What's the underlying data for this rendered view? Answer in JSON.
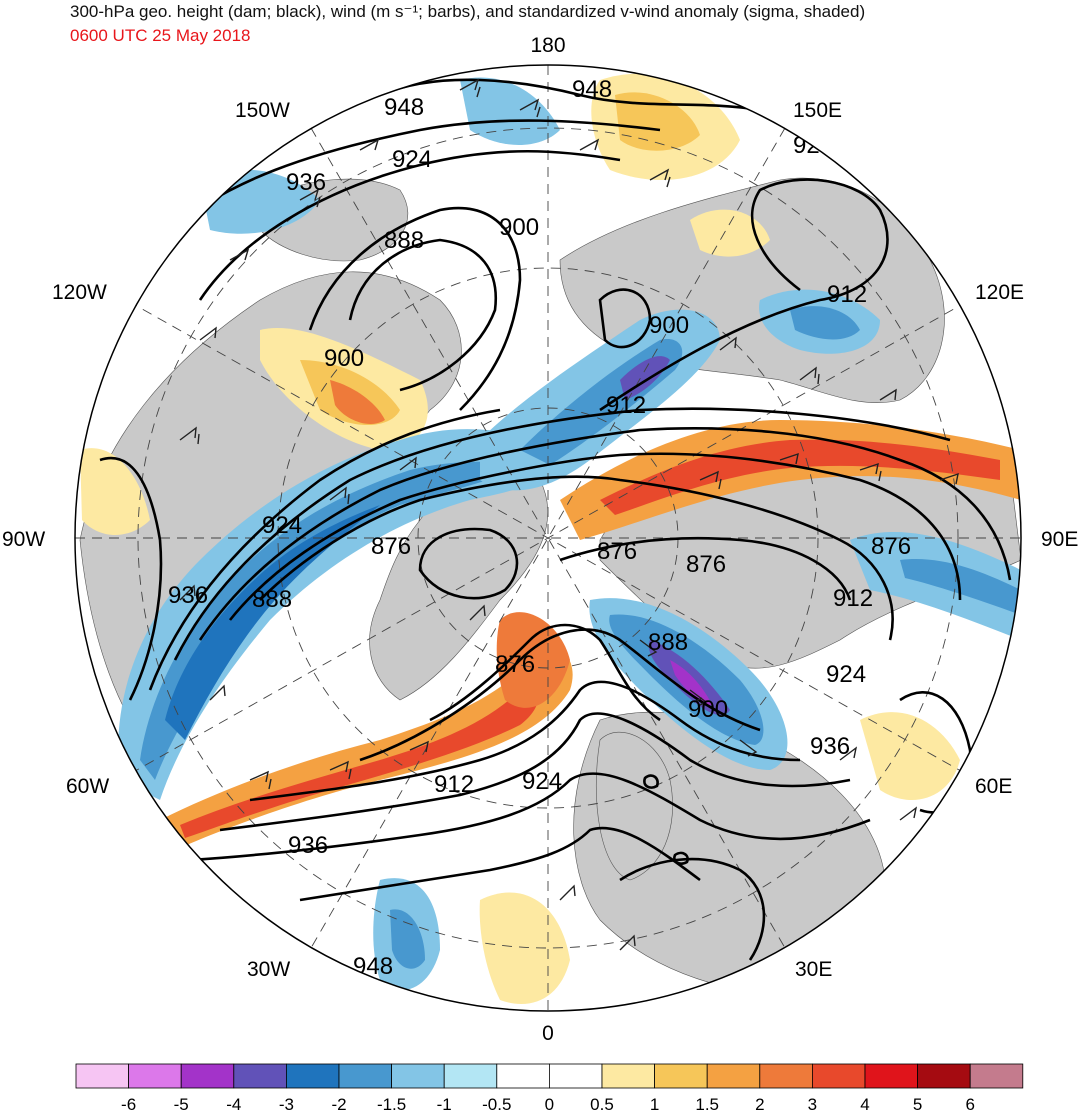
{
  "header": {
    "title": "300-hPa geo. height (dam; black), wind (m s⁻¹; barbs), and standardized v-wind anomaly (sigma, shaded)",
    "valid_time": "0600 UTC 25 May 2018"
  },
  "longitude_labels": {
    "l180": "180",
    "l150e": "150E",
    "l120e": "120E",
    "l90e": "90E",
    "l60e": "60E",
    "l30e": "30E",
    "l0": "0",
    "l30w": "30W",
    "l60w": "60W",
    "l90w": "90W",
    "l120w": "120W",
    "l150w": "150W"
  },
  "contour_labels": {
    "c948a": "948",
    "c948b": "948",
    "c924a": "924",
    "c936a": "936",
    "c888a": "888",
    "c900a": "900",
    "c912a": "912",
    "c900b": "900",
    "c900c": "900",
    "c912b": "912",
    "c924b": "924",
    "c876a": "876",
    "c876b": "876",
    "c876c": "876",
    "c936b": "936",
    "c888b": "888",
    "c888c": "888",
    "c912c": "912",
    "c924c": "924",
    "c900d": "900",
    "c936c": "936",
    "c876d": "876",
    "c912d": "912",
    "c924d": "924",
    "c936d": "936",
    "c948c": "948"
  },
  "colorbar": {
    "labels": [
      "-6",
      "-5",
      "-4",
      "-3",
      "-2",
      "-1.5",
      "-1",
      "-0.5",
      "0",
      "0.5",
      "1",
      "1.5",
      "2",
      "3",
      "4",
      "5",
      "6"
    ],
    "colors": [
      "#f6c5f3",
      "#dc78ea",
      "#a333c9",
      "#6152b8",
      "#1f74bd",
      "#4898cf",
      "#83c5e6",
      "#b3e6f4",
      "#ffffff",
      "#ffffff",
      "#fde9a2",
      "#f6c659",
      "#f4a142",
      "#ee7a3a",
      "#e8492c",
      "#e0141b",
      "#a50b11",
      "#c47b8d"
    ]
  }
}
